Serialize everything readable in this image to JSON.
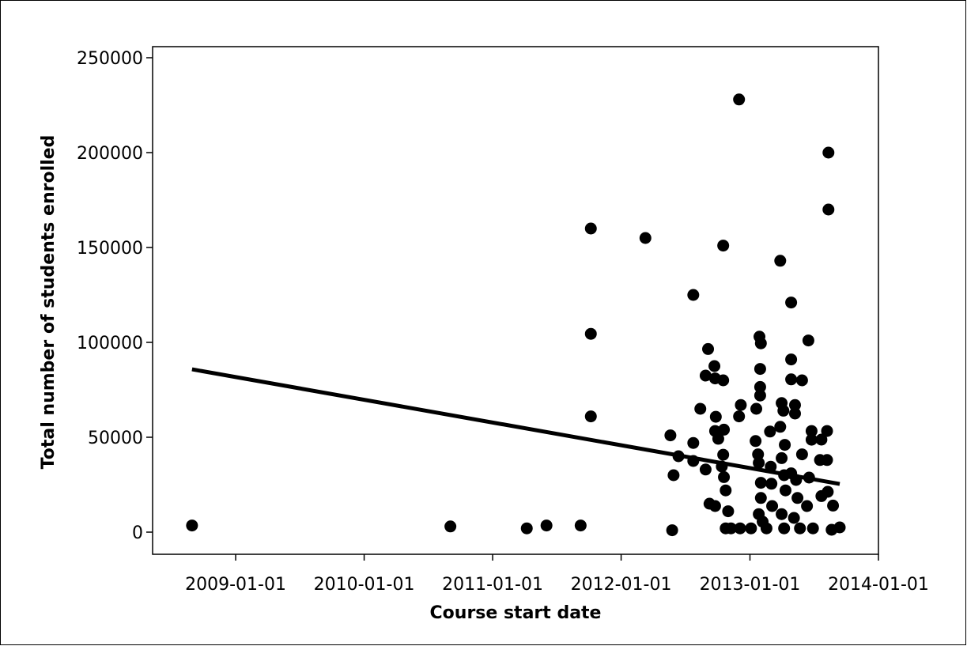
{
  "chart_data": {
    "type": "scatter",
    "x_label": "Course start date",
    "y_label": "Total number of students enrolled",
    "x": [
      "2008-08-30",
      "2010-09-03",
      "2011-04-08",
      "2011-06-03",
      "2011-09-08",
      "2011-10-07",
      "2011-10-07",
      "2011-10-07",
      "2012-03-10",
      "2012-05-20",
      "2012-05-29",
      "2012-05-25",
      "2012-06-12",
      "2012-07-24",
      "2012-07-24",
      "2012-07-24",
      "2012-08-13",
      "2012-08-28",
      "2012-09-04",
      "2012-08-28",
      "2012-09-22",
      "2012-09-24",
      "2012-10-17",
      "2012-10-17",
      "2012-09-26",
      "2012-09-24",
      "2012-10-03",
      "2012-10-19",
      "2012-10-17",
      "2012-10-13",
      "2012-10-19",
      "2012-10-24",
      "2012-09-08",
      "2012-09-24",
      "2012-10-24",
      "2012-11-08",
      "2012-12-01",
      "2012-12-06",
      "2012-12-01",
      "2013-01-04",
      "2013-01-19",
      "2013-01-28",
      "2013-02-01",
      "2013-01-30",
      "2013-01-30",
      "2013-01-30",
      "2013-01-17",
      "2013-01-24",
      "2013-01-26",
      "2013-02-01",
      "2013-02-01",
      "2013-01-26",
      "2013-02-06",
      "2013-02-17",
      "2013-02-27",
      "2013-03-01",
      "2013-03-03",
      "2013-03-05",
      "2013-03-28",
      "2013-03-28",
      "2013-04-01",
      "2013-04-06",
      "2013-04-10",
      "2013-04-01",
      "2013-04-08",
      "2013-04-12",
      "2013-04-01",
      "2013-04-08",
      "2013-04-28",
      "2013-04-28",
      "2013-04-28",
      "2013-05-09",
      "2013-05-09",
      "2013-04-28",
      "2013-05-12",
      "2013-05-16",
      "2013-05-06",
      "2013-05-29",
      "2013-05-29",
      "2013-05-23",
      "2013-06-16",
      "2013-06-25",
      "2013-06-25",
      "2013-06-18",
      "2013-06-12",
      "2013-06-29",
      "2013-07-23",
      "2013-07-19",
      "2013-07-23",
      "2013-08-12",
      "2013-08-12",
      "2013-08-08",
      "2013-08-08",
      "2013-08-10",
      "2013-08-21",
      "2013-08-25",
      "2013-09-13",
      "2012-10-31",
      "2012-12-04"
    ],
    "values": [
      3500,
      3000,
      2000,
      3500,
      3500,
      160000,
      104500,
      61000,
      155000,
      51000,
      30000,
      1000,
      40000,
      125000,
      47000,
      37500,
      65000,
      33000,
      96500,
      82500,
      87500,
      81000,
      151000,
      80000,
      60800,
      53300,
      49200,
      54000,
      40800,
      34600,
      29000,
      22000,
      15000,
      13750,
      2000,
      2000,
      228000,
      67000,
      61000,
      2000,
      65000,
      103000,
      99500,
      86000,
      76500,
      72000,
      48000,
      41000,
      36500,
      26000,
      18000,
      9500,
      5500,
      2000,
      53000,
      34500,
      25500,
      13750,
      143000,
      55500,
      68000,
      64000,
      46000,
      39000,
      30000,
      22000,
      9500,
      2000,
      121000,
      91000,
      80500,
      67000,
      62500,
      31000,
      27500,
      18000,
      7500,
      80000,
      41000,
      2000,
      101000,
      53300,
      48700,
      28750,
      13750,
      2000,
      48750,
      38000,
      19000,
      200000,
      170000,
      53300,
      38000,
      21250,
      1250,
      14000,
      2500,
      11000,
      2000
    ],
    "trend_x": [
      "2008-08-30",
      "2013-09-13"
    ],
    "trend_values": [
      85800,
      25400
    ],
    "color": "#000000",
    "xlim": [
      "2008-05-10",
      "2014-01-01"
    ],
    "xticks": [
      "2009-01-01",
      "2010-01-01",
      "2011-01-01",
      "2012-01-01",
      "2013-01-01",
      "2014-01-01"
    ],
    "ylim": [
      -11667,
      255833
    ],
    "yticks": [
      0,
      50000,
      100000,
      150000,
      200000,
      250000
    ],
    "grid": false
  }
}
